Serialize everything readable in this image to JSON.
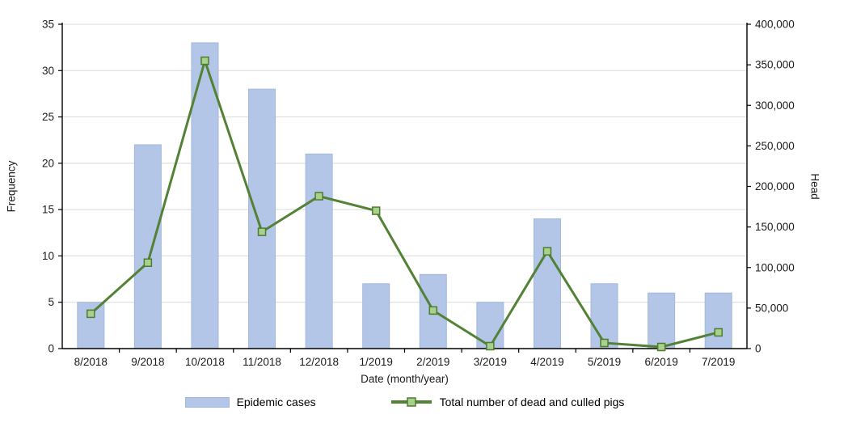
{
  "chart_data": {
    "type": "bar",
    "subtype": "combo-bar-line-dual-axis",
    "categories": [
      "8/2018",
      "9/2018",
      "10/2018",
      "11/2018",
      "12/2018",
      "1/2019",
      "2/2019",
      "3/2019",
      "4/2019",
      "5/2019",
      "6/2019",
      "7/2019"
    ],
    "series": [
      {
        "name": "Epidemic cases",
        "type": "bar",
        "axis": "left",
        "values": [
          5,
          22,
          33,
          28,
          21,
          7,
          8,
          5,
          14,
          7,
          6,
          6
        ]
      },
      {
        "name": "Total number of dead and culled pigs",
        "type": "line",
        "axis": "right",
        "values": [
          43000,
          106000,
          355000,
          144000,
          188000,
          170000,
          47000,
          3000,
          120000,
          7000,
          2000,
          20000
        ]
      }
    ],
    "left_axis": {
      "label": "Frequency",
      "min": 0,
      "max": 35,
      "step": 5
    },
    "right_axis": {
      "label": "Head",
      "min": 0,
      "max": 400000,
      "step": 50000,
      "tick_labels": [
        "0",
        "50,000",
        "100,000",
        "150,000",
        "200,000",
        "250,000",
        "300,000",
        "350,000",
        "400,000"
      ]
    },
    "x_axis": {
      "label": "Date (month/year)"
    },
    "grid": true,
    "legend_position": "bottom",
    "colors": {
      "bar_fill": "#b4c6e7",
      "bar_border": "#a3b8dc",
      "line": "#538135",
      "marker_fill": "#a9d18e",
      "marker_border": "#4e7b2f",
      "gridline": "#d9d9d9",
      "axis": "#000000",
      "text": "#1a1a1a"
    }
  }
}
